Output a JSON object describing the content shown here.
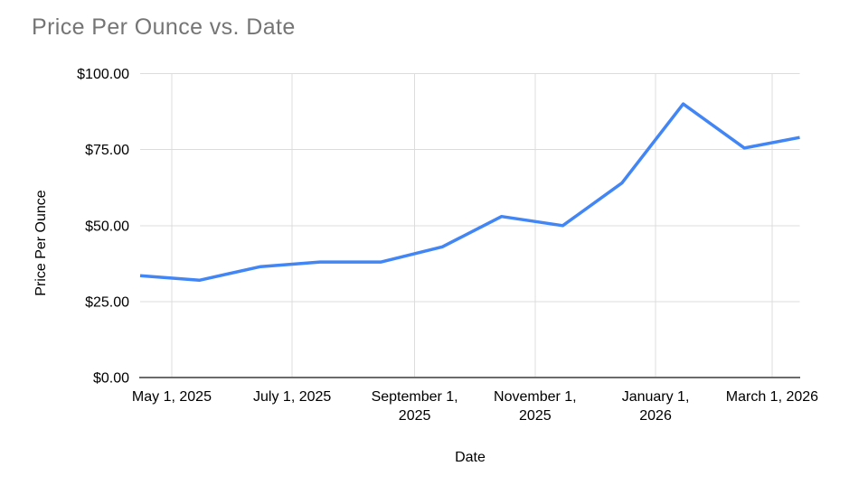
{
  "page": {
    "background": "#ffffff"
  },
  "chart": {
    "title_color": "#757575",
    "series_color": "#4285f4",
    "gridline_color": "#dcdcdc",
    "axis_line_color": "#6b6b6b",
    "tick_label_color": "#000000",
    "axis_title_color": "#000000",
    "plot_background": "#ffffff"
  },
  "chart_data": {
    "type": "line",
    "title": "Price Per Ounce vs. Date",
    "xlabel": "Date",
    "ylabel": "Price Per Ounce",
    "legend_position": "none",
    "grid": true,
    "ylim": [
      0,
      100
    ],
    "x_domain_days": 334,
    "x_start_date": "April 15, 2025",
    "x_end_date": "March 15, 2026",
    "y_ticks": [
      {
        "label": "$0.00",
        "value": 0
      },
      {
        "label": "$25.00",
        "value": 25
      },
      {
        "label": "$50.00",
        "value": 50
      },
      {
        "label": "$75.00",
        "value": 75
      },
      {
        "label": "$100.00",
        "value": 100
      }
    ],
    "x_ticks": [
      {
        "lines": [
          "May 1, 2025"
        ],
        "day": 16
      },
      {
        "lines": [
          "July 1, 2025"
        ],
        "day": 77
      },
      {
        "lines": [
          "September 1,",
          "2025"
        ],
        "day": 139
      },
      {
        "lines": [
          "November 1,",
          "2025"
        ],
        "day": 200
      },
      {
        "lines": [
          "January 1,",
          "2026"
        ],
        "day": 261
      },
      {
        "lines": [
          "March 1, 2026"
        ],
        "day": 320
      }
    ],
    "points": [
      {
        "date": "Apr 15, 2025",
        "day": 0,
        "value": 33.5
      },
      {
        "date": "May 15, 2025",
        "day": 30,
        "value": 32
      },
      {
        "date": "Jun 15, 2025",
        "day": 61,
        "value": 36.5
      },
      {
        "date": "Jul 15, 2025",
        "day": 91,
        "value": 38
      },
      {
        "date": "Aug 15, 2025",
        "day": 122,
        "value": 38
      },
      {
        "date": "Sep 15, 2025",
        "day": 153,
        "value": 43
      },
      {
        "date": "Oct 15, 2025",
        "day": 183,
        "value": 53
      },
      {
        "date": "Nov 15, 2025",
        "day": 214,
        "value": 50
      },
      {
        "date": "Dec 15, 2025",
        "day": 244,
        "value": 64
      },
      {
        "date": "Jan 15, 2026",
        "day": 275,
        "value": 90
      },
      {
        "date": "Feb 15, 2026",
        "day": 306,
        "value": 75.5
      },
      {
        "date": "Mar 15, 2026",
        "day": 334,
        "value": 79
      }
    ]
  }
}
